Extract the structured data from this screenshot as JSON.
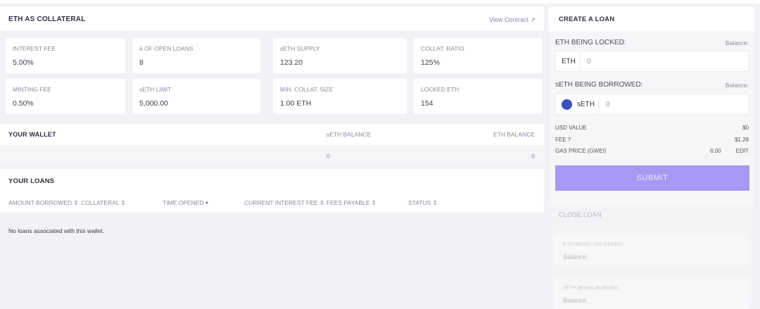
{
  "collateral": {
    "title": "ETH AS COLLATERAL",
    "view_contract": "View Contract ↗",
    "stats": [
      {
        "label": "INTEREST FEE",
        "value": "5.00%"
      },
      {
        "label": "# OF OPEN LOANS",
        "value": "8"
      },
      {
        "label": "sETH SUPPLY",
        "value": "123.20"
      },
      {
        "label": "COLLAT. RATIO",
        "value": "125%"
      },
      {
        "label": "MINTING FEE",
        "value": "0.50%"
      },
      {
        "label": "sETH LIMIT",
        "value": "5,000.00"
      },
      {
        "label": "MIN. COLLAT. SIZE",
        "value": "1.00 ETH"
      },
      {
        "label": "LOCKED ETH",
        "value": "154"
      }
    ]
  },
  "wallet": {
    "title": "YOUR WALLET",
    "seth_label": "sETH BALANCE",
    "eth_label": "ETH BALANCE",
    "seth_value": "0",
    "eth_value": "0"
  },
  "loans": {
    "title": "YOUR LOANS",
    "columns": [
      "AMOUNT BORROWED ⇕",
      "COLLATERAL ⇕",
      "TIME OPENED ▾",
      "CURRENT INTEREST FEE ⇕",
      "FEES PAYABLE ⇕",
      "STATUS ⇕"
    ],
    "empty": "No loans associated with this wallet."
  },
  "create": {
    "title": "CREATE A LOAN",
    "locked_label": "ETH BEING LOCKED:",
    "balance": "Balance:",
    "eth_unit": "ETH",
    "eth_value": "0",
    "borrowed_label": "sETH BEING BORROWED:",
    "seth_unit": "sETH",
    "seth_value": "0",
    "usd_label": "USD VALUE",
    "usd_value": "$0",
    "fee_label": "FEE ?",
    "fee_value": "$1.28",
    "gas_label": "GAS PRICE (GWEI)",
    "gas_value": "6.00",
    "edit": "EDIT",
    "submit": "SUBMIT",
    "accent": "#a898f2"
  },
  "close": {
    "title": "CLOSE LOAN",
    "unlocked_label": "ETH BEING UNLOCKED:",
    "balance": "Balance:",
    "burned_label": "sETH BEING BURNED:",
    "balance2": "Balance:"
  }
}
